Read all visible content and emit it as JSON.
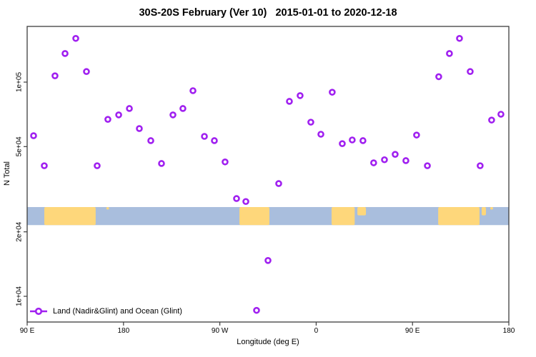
{
  "title": "30S-20S February (Ver 10)   2015-01-01 to 2020-12-18",
  "colors": {
    "point": "#a020f0",
    "ocean": "#a9bedd",
    "land": "#fed77b",
    "axis": "#3d3d3d",
    "text": "#000000"
  },
  "chart_data": {
    "type": "scatter",
    "title": "30S-20S February (Ver 10)   2015-01-01 to 2020-12-18",
    "xlabel": "Longitude (deg E)",
    "ylabel": "N Total",
    "legend": {
      "label": "Land (Nadir&Glint) and Ocean (Glint)",
      "position": "bottom-left",
      "marker": "open-circle-on-line"
    },
    "x_axis": {
      "note": "axis spans 450 degrees eastward starting at 90E; deg = degrees from left edge",
      "span_deg": 450,
      "ticks": [
        {
          "deg": 0,
          "label": "90 E"
        },
        {
          "deg": 90,
          "label": "180"
        },
        {
          "deg": 180,
          "label": "90 W"
        },
        {
          "deg": 270,
          "label": "0"
        },
        {
          "deg": 360,
          "label": "90 E"
        },
        {
          "deg": 450,
          "label": "180"
        }
      ]
    },
    "y_axis": {
      "scale": "log10",
      "range": [
        7000,
        190000
      ],
      "ticks": [
        {
          "value": 10000,
          "label": "1e+04"
        },
        {
          "value": 20000,
          "label": "2e+04"
        },
        {
          "value": 50000,
          "label": "5e+04"
        },
        {
          "value": 100000,
          "label": "1e+05"
        }
      ]
    },
    "points": [
      {
        "deg": 6,
        "n": 56200
      },
      {
        "deg": 16,
        "n": 40700
      },
      {
        "deg": 26,
        "n": 107000
      },
      {
        "deg": 35.4,
        "n": 136000
      },
      {
        "deg": 45.4,
        "n": 160000
      },
      {
        "deg": 55.4,
        "n": 112000
      },
      {
        "deg": 65.4,
        "n": 40700
      },
      {
        "deg": 75.4,
        "n": 67000
      },
      {
        "deg": 85.5,
        "n": 70300
      },
      {
        "deg": 95.5,
        "n": 75300
      },
      {
        "deg": 104.8,
        "n": 60700
      },
      {
        "deg": 115.5,
        "n": 53300
      },
      {
        "deg": 125.5,
        "n": 41700
      },
      {
        "deg": 136.2,
        "n": 70300
      },
      {
        "deg": 145.5,
        "n": 75300
      },
      {
        "deg": 154.9,
        "n": 91200
      },
      {
        "deg": 165.6,
        "n": 55800
      },
      {
        "deg": 174.9,
        "n": 53300
      },
      {
        "deg": 184.9,
        "n": 42400
      },
      {
        "deg": 195.6,
        "n": 28600
      },
      {
        "deg": 204.3,
        "n": 27700
      },
      {
        "deg": 214.3,
        "n": 8600
      },
      {
        "deg": 225,
        "n": 14700
      },
      {
        "deg": 235,
        "n": 33600
      },
      {
        "deg": 245,
        "n": 81300
      },
      {
        "deg": 255,
        "n": 86500
      },
      {
        "deg": 265,
        "n": 65000
      },
      {
        "deg": 274.4,
        "n": 57100
      },
      {
        "deg": 285,
        "n": 89700
      },
      {
        "deg": 294.4,
        "n": 51600
      },
      {
        "deg": 303.7,
        "n": 53700
      },
      {
        "deg": 313.7,
        "n": 53300
      },
      {
        "deg": 323.7,
        "n": 42000
      },
      {
        "deg": 333.8,
        "n": 43400
      },
      {
        "deg": 343.8,
        "n": 46000
      },
      {
        "deg": 353.8,
        "n": 43000
      },
      {
        "deg": 363.8,
        "n": 56600
      },
      {
        "deg": 373.9,
        "n": 40700
      },
      {
        "deg": 384.5,
        "n": 106000
      },
      {
        "deg": 394.5,
        "n": 136000
      },
      {
        "deg": 403.9,
        "n": 160000
      },
      {
        "deg": 413.9,
        "n": 112000
      },
      {
        "deg": 423.2,
        "n": 40700
      },
      {
        "deg": 433.9,
        "n": 66500
      },
      {
        "deg": 442.6,
        "n": 70800
      }
    ],
    "map_strip": {
      "description": "latitude-band world map strip (ocean with land masses) drawn across the plot",
      "band_top_n": 26100,
      "band_bottom_n": 21500,
      "land_segments": [
        {
          "from_deg": 16,
          "to_deg": 64,
          "extent": "full"
        },
        {
          "from_deg": 74,
          "to_deg": 76.5,
          "extent": "sliver"
        },
        {
          "from_deg": 198.3,
          "to_deg": 226.3,
          "extent": "full"
        },
        {
          "from_deg": 284.4,
          "to_deg": 306,
          "extent": "full"
        },
        {
          "from_deg": 308.5,
          "to_deg": 316.5,
          "extent": "top-half"
        },
        {
          "from_deg": 384,
          "to_deg": 422.6,
          "extent": "full"
        },
        {
          "from_deg": 424.6,
          "to_deg": 428.6,
          "extent": "top-half"
        },
        {
          "from_deg": 432.6,
          "to_deg": 435.3,
          "extent": "sliver"
        }
      ]
    }
  }
}
